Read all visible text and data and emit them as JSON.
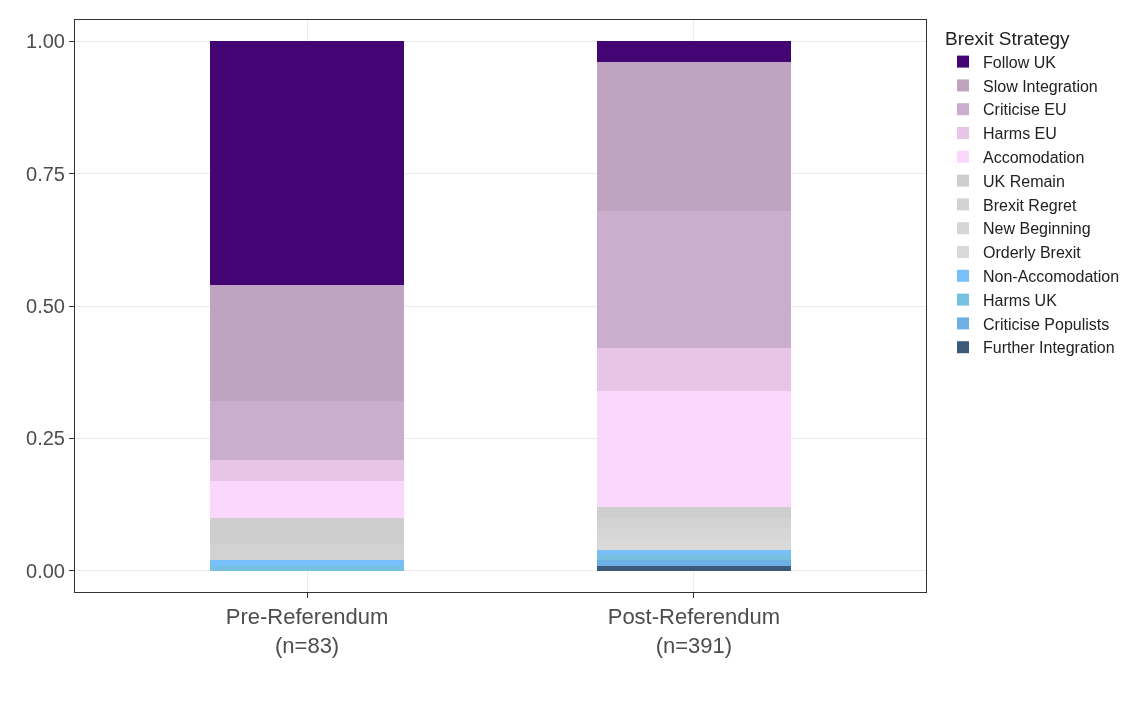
{
  "chart_data": {
    "type": "bar",
    "stacked": true,
    "legend_title": "Brexit Strategy",
    "legend": "right",
    "grid": true,
    "categories": [
      "Pre-Referendum\n(n=83)",
      "Post-Referendum\n(n=391)"
    ],
    "ylim": [
      -0.04,
      1.04
    ],
    "yticks": [
      {
        "value": 0,
        "label": "0.00"
      },
      {
        "value": 0.25,
        "label": "0.25"
      },
      {
        "value": 0.5,
        "label": "0.50"
      },
      {
        "value": 0.75,
        "label": "0.75"
      },
      {
        "value": 1,
        "label": "1.00"
      }
    ],
    "series": [
      {
        "name": "Further Integration",
        "color": "#3b5a78",
        "values": [
          0,
          0.01
        ]
      },
      {
        "name": "Criticise Populists",
        "color": "#6cb0e6",
        "values": [
          0,
          0.01
        ]
      },
      {
        "name": "Harms UK",
        "color": "#78c0e0",
        "values": [
          0.01,
          0.01
        ]
      },
      {
        "name": "Non-Accomodation",
        "color": "#78c0fc",
        "values": [
          0.01,
          0.01
        ]
      },
      {
        "name": "Orderly Brexit",
        "color": "#d9d9d9",
        "values": [
          0,
          0.02
        ]
      },
      {
        "name": "New Beginning",
        "color": "#d6d6d6",
        "values": [
          0,
          0.02
        ]
      },
      {
        "name": "Brexit Regret",
        "color": "#d2d2d2",
        "values": [
          0.03,
          0.02
        ]
      },
      {
        "name": "UK Remain",
        "color": "#cecece",
        "values": [
          0.05,
          0.02
        ]
      },
      {
        "name": "Accomodation",
        "color": "#fcd7fd",
        "values": [
          0.07,
          0.22
        ]
      },
      {
        "name": "Harms EU",
        "color": "#e8c4e6",
        "values": [
          0.04,
          0.08
        ]
      },
      {
        "name": "Criticise EU",
        "color": "#cbadcd",
        "values": [
          0.11,
          0.26
        ]
      },
      {
        "name": "Slow Integration",
        "color": "#c0a2c1",
        "values": [
          0.22,
          0.28
        ]
      },
      {
        "name": "Follow UK",
        "color": "#440574",
        "values": [
          0.46,
          0.04
        ]
      }
    ]
  }
}
